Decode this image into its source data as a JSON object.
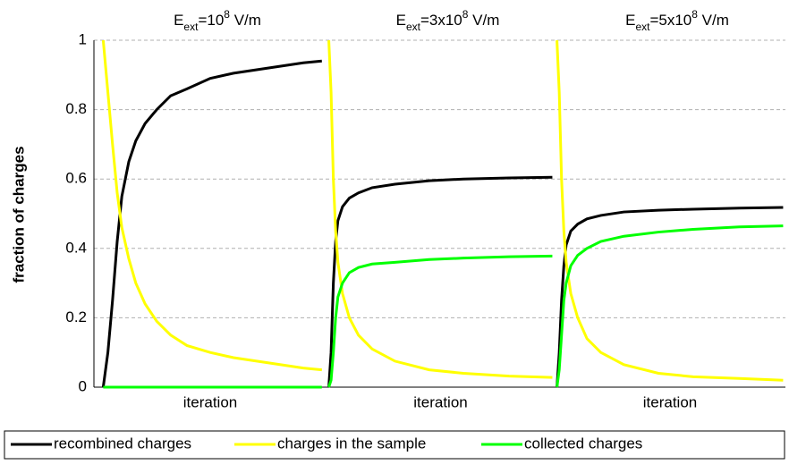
{
  "chart_data": [
    {
      "type": "line",
      "title": [
        {
          "text": "E"
        },
        {
          "text": "ext",
          "script": "sub"
        },
        {
          "text": "=10"
        },
        {
          "text": "8",
          "script": "super"
        },
        {
          "text": " V/m"
        }
      ],
      "x_label": "iteration",
      "y_label": "fraction of charges",
      "ylim": [
        0,
        1
      ],
      "yticks": [
        0,
        0.2,
        0.4,
        0.6,
        0.8,
        1
      ],
      "grid": true,
      "xlim": [
        0,
        100
      ],
      "x": [
        4,
        6,
        8,
        10,
        12,
        15,
        18,
        22,
        27,
        33,
        40,
        50,
        60,
        70,
        80,
        90,
        98
      ],
      "series": [
        {
          "name": "recombined charges",
          "color": "#000000",
          "values": [
            0,
            0.1,
            0.25,
            0.42,
            0.55,
            0.65,
            0.71,
            0.76,
            0.8,
            0.84,
            0.86,
            0.89,
            0.905,
            0.915,
            0.925,
            0.935,
            0.94
          ]
        },
        {
          "name": "charges in the sample",
          "color": "#ffff00",
          "values": [
            1,
            0.85,
            0.7,
            0.56,
            0.46,
            0.37,
            0.3,
            0.24,
            0.19,
            0.15,
            0.12,
            0.1,
            0.085,
            0.075,
            0.065,
            0.055,
            0.05
          ]
        },
        {
          "name": "collected charges",
          "color": "#00ff00",
          "values": [
            0,
            0,
            0,
            0,
            0,
            0,
            0,
            0,
            0,
            0,
            0,
            0,
            0,
            0,
            0,
            0,
            0
          ]
        }
      ]
    },
    {
      "type": "line",
      "title": [
        {
          "text": "E"
        },
        {
          "text": "ext",
          "script": "sub"
        },
        {
          "text": "=3x10"
        },
        {
          "text": "8",
          "script": "super"
        },
        {
          "text": " V/m"
        }
      ],
      "x_label": "iteration",
      "ylim": [
        0,
        1
      ],
      "xlim": [
        0,
        100
      ],
      "x": [
        1,
        2,
        3,
        4,
        5,
        7,
        10,
        14,
        20,
        30,
        45,
        60,
        80,
        99
      ],
      "series": [
        {
          "color": "#000000",
          "values": [
            0,
            0.1,
            0.3,
            0.42,
            0.48,
            0.52,
            0.545,
            0.56,
            0.575,
            0.585,
            0.595,
            0.6,
            0.603,
            0.605
          ]
        },
        {
          "color": "#ffff00",
          "values": [
            1,
            0.85,
            0.6,
            0.45,
            0.36,
            0.27,
            0.2,
            0.15,
            0.11,
            0.075,
            0.05,
            0.04,
            0.032,
            0.028
          ]
        },
        {
          "color": "#00ff00",
          "values": [
            0,
            0.02,
            0.1,
            0.2,
            0.26,
            0.3,
            0.33,
            0.345,
            0.355,
            0.36,
            0.368,
            0.372,
            0.376,
            0.378
          ]
        }
      ]
    },
    {
      "type": "line",
      "title": [
        {
          "text": "E"
        },
        {
          "text": "ext",
          "script": "sub"
        },
        {
          "text": "=5x10"
        },
        {
          "text": "8",
          "script": "super"
        },
        {
          "text": " V/m"
        }
      ],
      "x_label": "iteration",
      "ylim": [
        0,
        1
      ],
      "xlim": [
        0,
        100
      ],
      "x": [
        1,
        2,
        3,
        4,
        5,
        7,
        10,
        14,
        20,
        30,
        45,
        60,
        80,
        99
      ],
      "series": [
        {
          "color": "#000000",
          "values": [
            0,
            0.1,
            0.25,
            0.35,
            0.41,
            0.45,
            0.47,
            0.485,
            0.495,
            0.505,
            0.51,
            0.513,
            0.516,
            0.518
          ]
        },
        {
          "color": "#ffff00",
          "values": [
            1,
            0.85,
            0.6,
            0.45,
            0.36,
            0.27,
            0.2,
            0.14,
            0.1,
            0.065,
            0.04,
            0.03,
            0.025,
            0.02
          ]
        },
        {
          "color": "#00ff00",
          "values": [
            0,
            0.05,
            0.15,
            0.25,
            0.3,
            0.35,
            0.38,
            0.4,
            0.42,
            0.435,
            0.447,
            0.455,
            0.462,
            0.465
          ]
        }
      ]
    }
  ]
}
